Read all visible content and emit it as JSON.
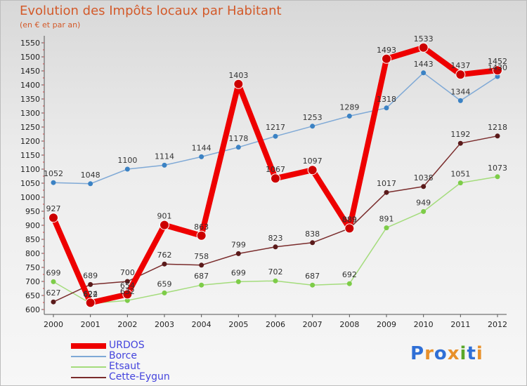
{
  "header": {
    "title": "Evolution des Impôts locaux par Habitant",
    "subtitle": "(en € et par an)"
  },
  "logo": {
    "text": "Proxiti",
    "letters": [
      "P",
      "r",
      "o",
      "x",
      "i",
      "t",
      "i"
    ],
    "colors": [
      "#2f6fd6",
      "#e8902a",
      "#2f6fd6",
      "#e8902a",
      "#5aa82a",
      "#2f6fd6",
      "#e8902a"
    ]
  },
  "chart_data": {
    "type": "line",
    "title": "Evolution des Impôts locaux par Habitant",
    "subtitle": "(en € et par an)",
    "xlabel": "",
    "ylabel": "",
    "x": [
      "2000",
      "2001",
      "2002",
      "2003",
      "2004",
      "2005",
      "2006",
      "2007",
      "2008",
      "2009",
      "2010",
      "2011",
      "2012"
    ],
    "ylim": [
      600,
      1550
    ],
    "yticks": [
      600,
      650,
      700,
      750,
      800,
      850,
      900,
      950,
      1000,
      1050,
      1100,
      1150,
      1200,
      1250,
      1300,
      1350,
      1400,
      1450,
      1500,
      1550
    ],
    "grid": false,
    "legend_position": "bottom-left",
    "series": [
      {
        "name": "URDOS",
        "color": "#ee0000",
        "marker": "#cc0000",
        "width": 8,
        "markerSize": 6.5,
        "values": [
          927,
          624,
          654,
          901,
          863,
          1403,
          1067,
          1097,
          889,
          1493,
          1533,
          1437,
          1452
        ]
      },
      {
        "name": "Borce",
        "color": "#7fa9d6",
        "marker": "#3b82c4",
        "width": 1.5,
        "markerSize": 3.5,
        "values": [
          1052,
          1048,
          1100,
          1114,
          1144,
          1178,
          1217,
          1253,
          1289,
          1318,
          1443,
          1344,
          1430
        ]
      },
      {
        "name": "Etsaut",
        "color": "#a4dc7c",
        "marker": "#7dcc48",
        "width": 1.5,
        "markerSize": 3.5,
        "values": [
          699,
          622,
          632,
          659,
          687,
          699,
          702,
          687,
          692,
          891,
          949,
          1051,
          1073
        ]
      },
      {
        "name": "Cette-Eygun",
        "color": "#7a2c2c",
        "marker": "#5a1a1a",
        "width": 1.5,
        "markerSize": 3.5,
        "values": [
          627,
          689,
          700,
          762,
          758,
          799,
          823,
          838,
          889,
          1017,
          1038,
          1192,
          1218
        ]
      }
    ]
  }
}
